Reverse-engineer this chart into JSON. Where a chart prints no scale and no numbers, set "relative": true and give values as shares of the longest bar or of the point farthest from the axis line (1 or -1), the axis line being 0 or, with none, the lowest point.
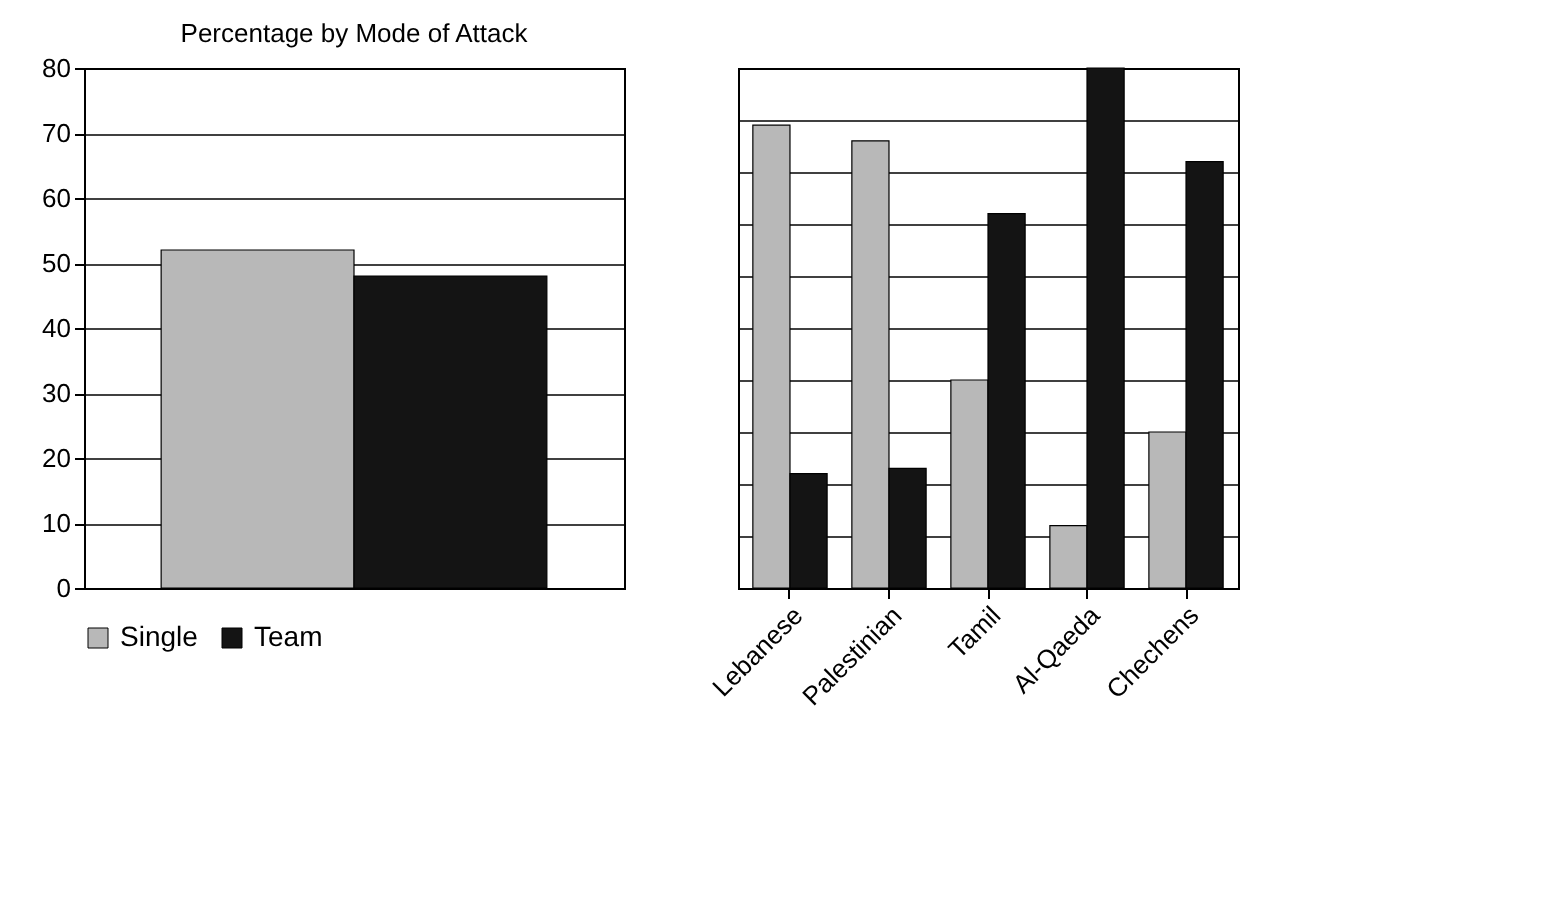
{
  "chart_data": [
    {
      "type": "bar",
      "title": "Percentage by Mode of Attack",
      "categories": [
        null
      ],
      "series": [
        {
          "name": "Single",
          "color": "#b8b8b8",
          "values": [
            52
          ]
        },
        {
          "name": "Team",
          "color": "#141414",
          "values": [
            48
          ]
        }
      ],
      "ylim": [
        0,
        80
      ],
      "yticks": [
        0,
        10,
        20,
        30,
        40,
        50,
        60,
        70,
        80
      ],
      "grid": "y",
      "legend": "bottom",
      "tick_labels": "y"
    },
    {
      "type": "bar",
      "categories": [
        "Lebanese",
        "Palestinian",
        "Tamil",
        "Al-Qaeda",
        "Chechens"
      ],
      "relative": true,
      "series": [
        {
          "color": "#b8b8b8",
          "values": [
            0.89,
            0.86,
            0.4,
            0.12,
            0.3
          ]
        },
        {
          "color": "#141414",
          "values": [
            0.22,
            0.23,
            0.72,
            1,
            0.82
          ]
        }
      ],
      "grid": "y",
      "tick_labels": "x"
    }
  ]
}
